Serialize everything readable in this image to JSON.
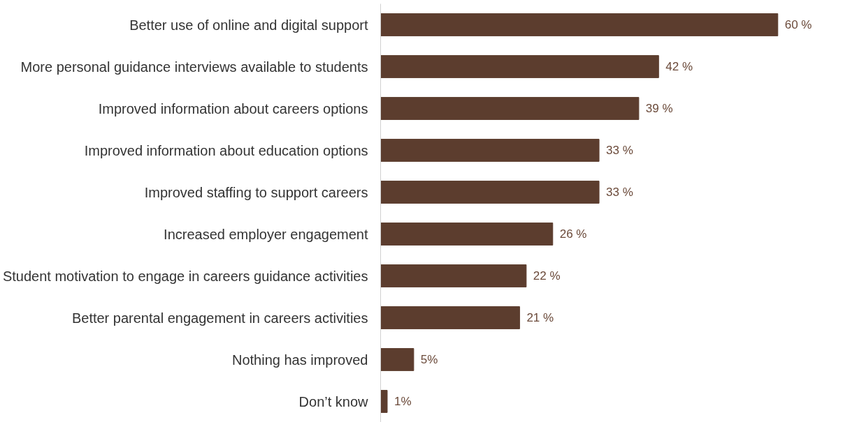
{
  "chart_data": {
    "type": "bar",
    "orientation": "horizontal",
    "grid": false,
    "tick_labels": "y",
    "categories": [
      "Better use of online and digital support",
      "More personal guidance interviews available to students",
      "Improved information about careers options",
      "Improved information about education options",
      "Improved staffing to support careers",
      "Increased employer engagement",
      "Student motivation to engage in careers guidance activities",
      "Better parental engagement in careers activities",
      "Nothing has improved",
      "Don’t know"
    ],
    "values": [
      60,
      42,
      39,
      33,
      33,
      26,
      22,
      21,
      5,
      1
    ],
    "value_labels": [
      "60 %",
      "42 %",
      "39 %",
      "33 %",
      "33 %",
      "26 %",
      "22 %",
      "21 %",
      "5%",
      "1%"
    ],
    "color": "#5c3d2e"
  }
}
